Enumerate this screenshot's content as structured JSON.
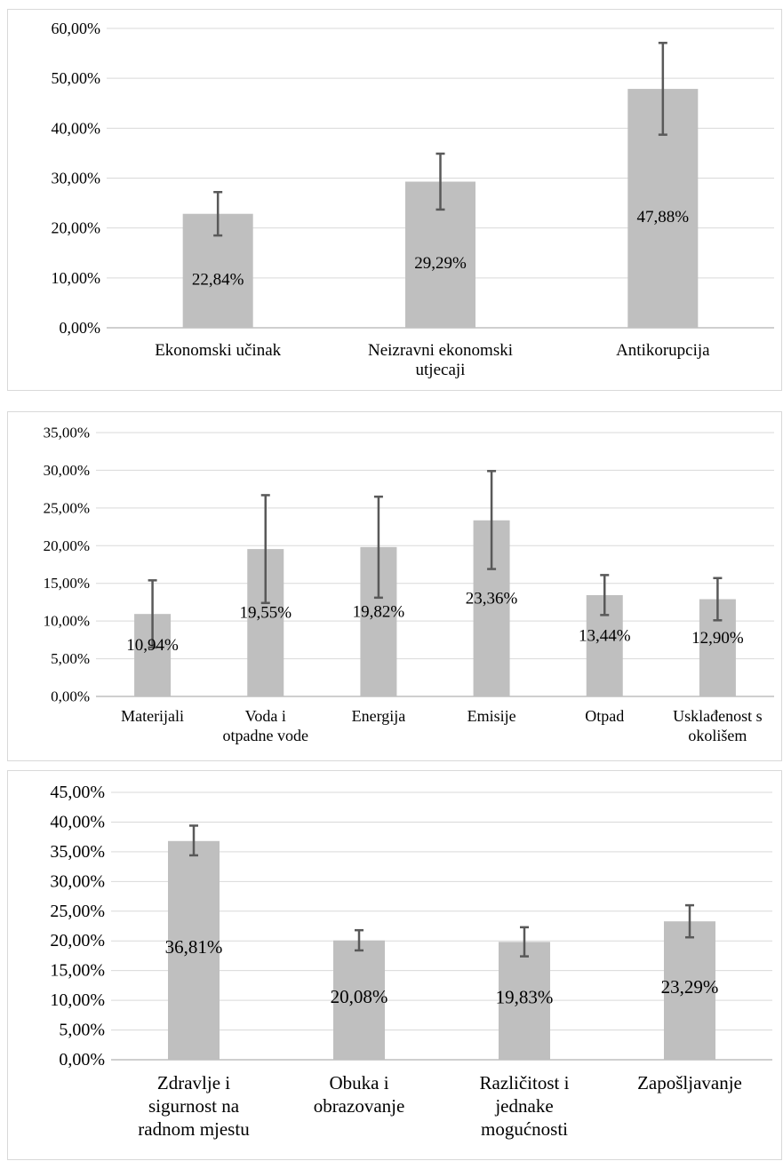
{
  "colors": {
    "bar": "#bfbfbf",
    "gridline": "#d9d9d9",
    "axis": "#bfbfbf",
    "error_bar": "#595959",
    "text": "#000000"
  },
  "chart_data": [
    {
      "type": "bar",
      "categories": [
        "Ekonomski učinak",
        "Neizravni ekonomski utjecaji",
        "Antikorupcija"
      ],
      "category_lines": [
        [
          "Ekonomski učinak"
        ],
        [
          "Neizravni ekonomski",
          "utjecaji"
        ],
        [
          "Antikorupcija"
        ]
      ],
      "values": [
        22.84,
        29.29,
        47.88
      ],
      "data_labels": [
        "22,84%",
        "29,29%",
        "47,88%"
      ],
      "error_bars": [
        [
          18.5,
          27.2
        ],
        [
          23.7,
          34.9
        ],
        [
          38.7,
          57.1
        ]
      ],
      "yticks": [
        0,
        10,
        20,
        30,
        40,
        50,
        60
      ],
      "ytick_labels": [
        "0,00%",
        "10,00%",
        "20,00%",
        "30,00%",
        "40,00%",
        "50,00%",
        "60,00%"
      ],
      "ylim": [
        0,
        60
      ],
      "grid": true
    },
    {
      "type": "bar",
      "categories": [
        "Materijali",
        "Voda i otpadne vode",
        "Energija",
        "Emisije",
        "Otpad",
        "Usklađenost s okolišem"
      ],
      "category_lines": [
        [
          "Materijali"
        ],
        [
          "Voda i",
          "otpadne vode"
        ],
        [
          "Energija"
        ],
        [
          "Emisije"
        ],
        [
          "Otpad"
        ],
        [
          "Usklađenost s",
          "okolišem"
        ]
      ],
      "values": [
        10.94,
        19.55,
        19.82,
        23.36,
        13.44,
        12.9
      ],
      "data_labels": [
        "10,94%",
        "19,55%",
        "19,82%",
        "23,36%",
        "13,44%",
        "12,90%"
      ],
      "error_bars": [
        [
          6.5,
          15.4
        ],
        [
          12.4,
          26.7
        ],
        [
          13.1,
          26.5
        ],
        [
          16.9,
          29.9
        ],
        [
          10.8,
          16.1
        ],
        [
          10.1,
          15.7
        ]
      ],
      "yticks": [
        0,
        5,
        10,
        15,
        20,
        25,
        30,
        35
      ],
      "ytick_labels": [
        "0,00%",
        "5,00%",
        "10,00%",
        "15,00%",
        "20,00%",
        "25,00%",
        "30,00%",
        "35,00%"
      ],
      "ylim": [
        0,
        35
      ],
      "grid": true
    },
    {
      "type": "bar",
      "categories": [
        "Zdravlje i sigurnost na radnom mjestu",
        "Obuka i obrazovanje",
        "Različitost i jednake mogućnosti",
        "Zapošljavanje"
      ],
      "category_lines": [
        [
          "Zdravlje i",
          "sigurnost na",
          "radnom mjestu"
        ],
        [
          "Obuka i",
          "obrazovanje"
        ],
        [
          "Različitost i",
          "jednake",
          "mogućnosti"
        ],
        [
          "Zapošljavanje"
        ]
      ],
      "values": [
        36.81,
        20.08,
        19.83,
        23.29
      ],
      "data_labels": [
        "36,81%",
        "20,08%",
        "19,83%",
        "23,29%"
      ],
      "error_bars": [
        [
          34.4,
          39.4
        ],
        [
          18.4,
          21.8
        ],
        [
          17.4,
          22.3
        ],
        [
          20.6,
          26.0
        ]
      ],
      "yticks": [
        0,
        5,
        10,
        15,
        20,
        25,
        30,
        35,
        40,
        45
      ],
      "ytick_labels": [
        "0,00%",
        "5,00%",
        "10,00%",
        "15,00%",
        "20,00%",
        "25,00%",
        "30,00%",
        "35,00%",
        "40,00%",
        "45,00%"
      ],
      "ylim": [
        0,
        45
      ],
      "grid": true
    }
  ]
}
